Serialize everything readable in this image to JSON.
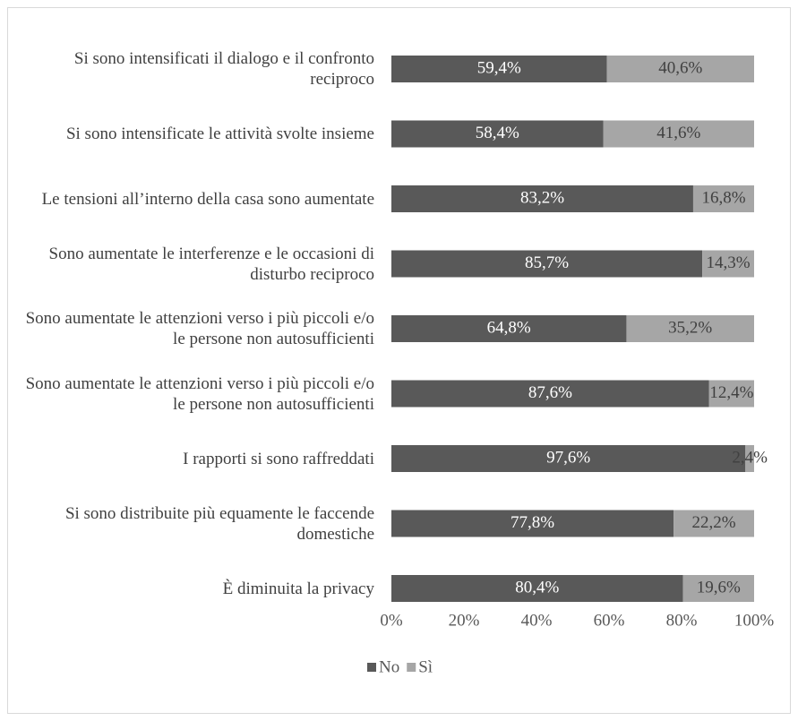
{
  "chart_data": {
    "type": "stacked-bar-horizontal",
    "categories": [
      "Si sono intensificati il dialogo e il confronto reciproco",
      "Si sono intensificate le attività svolte insieme",
      "Le tensioni all’interno della casa sono aumentate",
      "Sono aumentate le interferenze e le occasioni di disturbo reciproco",
      "Sono aumentate le attenzioni verso i più piccoli e/o le persone non autosufficienti",
      "Sono aumentate le attenzioni verso i più piccoli e/o le persone non autosufficienti",
      "I rapporti si sono raffreddati",
      "Si sono distribuite più equamente le faccende domestiche",
      "È diminuita la privacy"
    ],
    "series": [
      {
        "name": "No",
        "color": "#595959",
        "label_color": "#ffffff",
        "values": [
          59.4,
          58.4,
          83.2,
          85.7,
          64.8,
          87.6,
          97.6,
          77.8,
          80.4
        ],
        "value_labels": [
          "59,4%",
          "58,4%",
          "83,2%",
          "85,7%",
          "64,8%",
          "87,6%",
          "97,6%",
          "77,8%",
          "80,4%"
        ]
      },
      {
        "name": "Sì",
        "color": "#a6a6a6",
        "label_color": "#404040",
        "values": [
          40.6,
          41.6,
          16.8,
          14.3,
          35.2,
          12.4,
          2.4,
          22.2,
          19.6
        ],
        "value_labels": [
          "40,6%",
          "41,6%",
          "16,8%",
          "14,3%",
          "35,2%",
          "12,4%",
          "2,4%",
          "22,2%",
          "19,6%"
        ]
      }
    ],
    "xlim": [
      0,
      100
    ],
    "xticks": [
      {
        "value": 0,
        "label": "0%"
      },
      {
        "value": 20,
        "label": "20%"
      },
      {
        "value": 40,
        "label": "40%"
      },
      {
        "value": 60,
        "label": "60%"
      },
      {
        "value": 80,
        "label": "80%"
      },
      {
        "value": 100,
        "label": "100%"
      }
    ],
    "legend": "bottom"
  }
}
